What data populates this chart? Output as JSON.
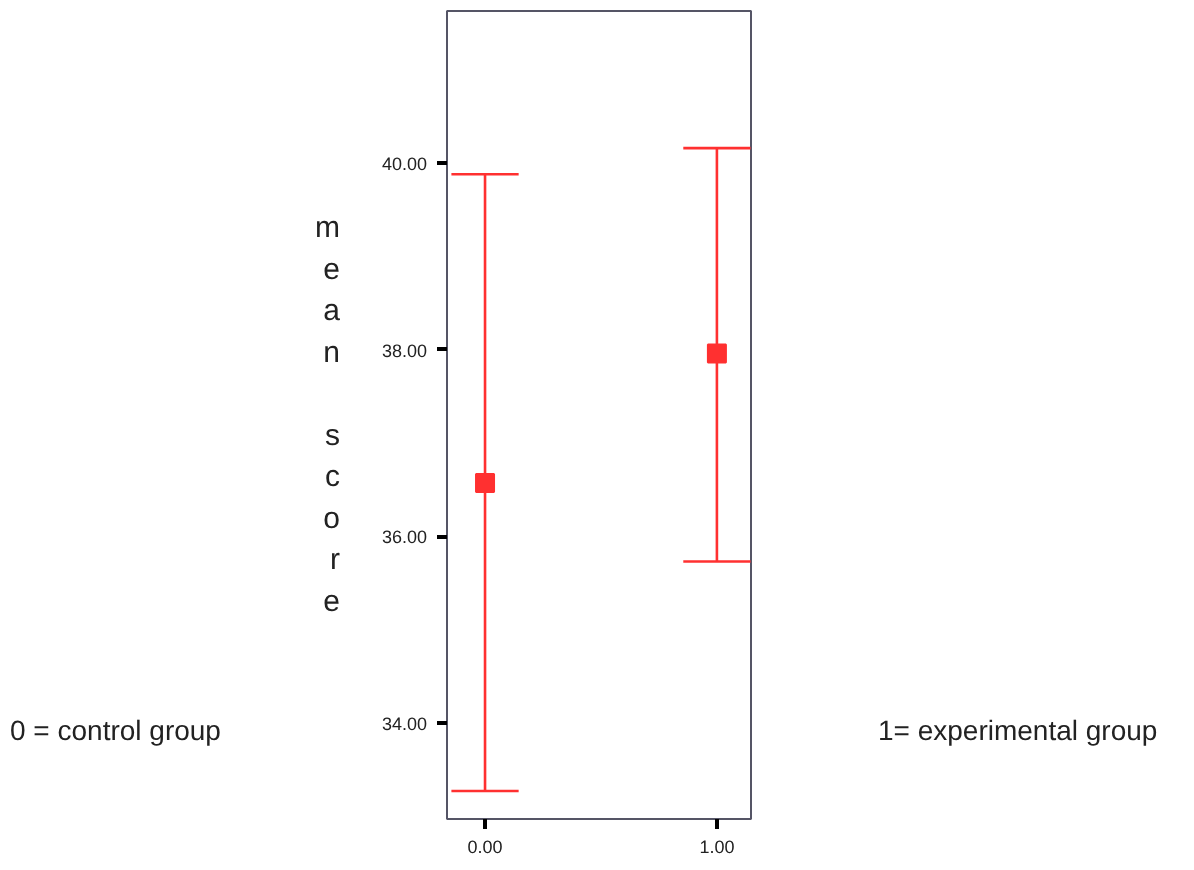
{
  "chart_data": {
    "type": "scatter",
    "x": [
      0,
      1
    ],
    "series": [
      {
        "color": "#ff3030",
        "values": [
          36.57,
          37.96
        ],
        "errors": [
          [
            33.27,
            39.88
          ],
          [
            35.73,
            40.16
          ]
        ]
      }
    ],
    "ylabel": "mean score",
    "marker": "square",
    "xlim": [
      -0.164,
      1.147
    ],
    "ylim": [
      32.97,
      41.63
    ],
    "xticks": [
      {
        "value": 0,
        "label": "0.00"
      },
      {
        "value": 1,
        "label": "1.00"
      }
    ],
    "yticks": [
      {
        "value": 34,
        "label": "34.00"
      },
      {
        "value": 36,
        "label": "36.00"
      },
      {
        "value": 38,
        "label": "38.00"
      },
      {
        "value": 40,
        "label": "40.00"
      }
    ],
    "annotations": [
      "0 = control group",
      "1= experimental group"
    ]
  }
}
